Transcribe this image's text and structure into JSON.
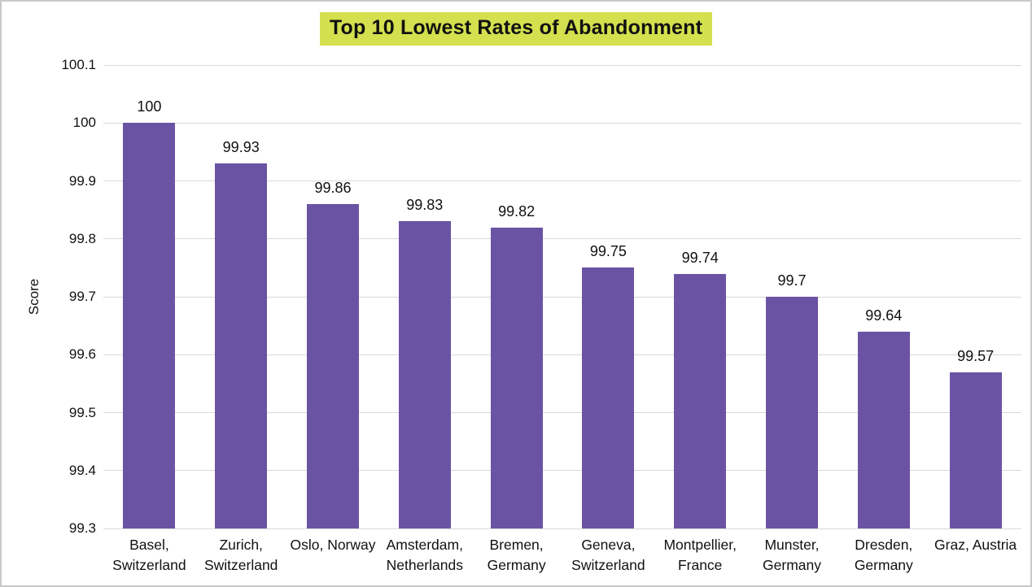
{
  "chart_data": {
    "type": "bar",
    "title": "Top 10 Lowest Rates of Abandonment",
    "xlabel": "",
    "ylabel": "Score",
    "categories": [
      "Basel, Switzerland",
      "Zurich, Switzerland",
      "Oslo, Norway",
      "Amsterdam, Netherlands",
      "Bremen, Germany",
      "Geneva, Switzerland",
      "Montpellier, France",
      "Munster, Germany",
      "Dresden, Germany",
      "Graz, Austria"
    ],
    "xtick_labels": [
      "Basel,\nSwitzerland",
      "Zurich,\nSwitzerland",
      "Oslo, Norway",
      "Amsterdam,\nNetherlands",
      "Bremen,\nGermany",
      "Geneva,\nSwitzerland",
      "Montpellier,\nFrance",
      "Munster,\nGermany",
      "Dresden,\nGermany",
      "Graz, Austria"
    ],
    "values": [
      100,
      99.93,
      99.86,
      99.83,
      99.82,
      99.75,
      99.74,
      99.7,
      99.64,
      99.57
    ],
    "value_labels": [
      "100",
      "99.93",
      "99.86",
      "99.83",
      "99.82",
      "99.75",
      "99.74",
      "99.7",
      "99.64",
      "99.57"
    ],
    "ylim": [
      99.3,
      100.1
    ],
    "yticks": [
      "100.1",
      "100",
      "99.9",
      "99.8",
      "99.7",
      "99.6",
      "99.5",
      "99.4",
      "99.3"
    ],
    "grid": "horizontal",
    "legend": "none",
    "colors": {
      "bar": "#6b53a4",
      "title_highlight": "#d4e04d",
      "gridline": "#d9d9d9",
      "text": "#111111",
      "frame_border": "#c9c9c9",
      "background": "#ffffff"
    }
  }
}
